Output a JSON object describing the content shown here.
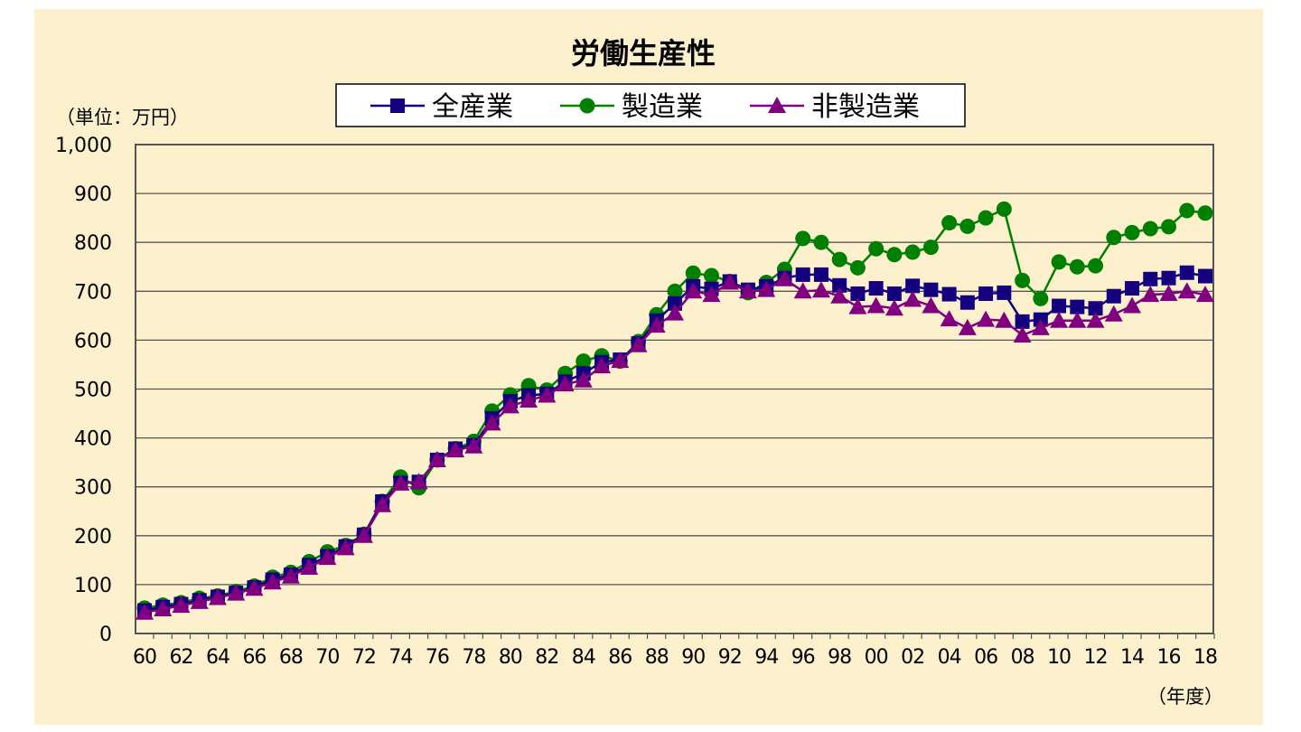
{
  "chart_data": {
    "type": "line",
    "title": "労働生産性",
    "unit_label": "（単位：万円）",
    "xlabel": "（年度）",
    "ylim": [
      0,
      1000
    ],
    "yticks": [
      "0",
      "100",
      "200",
      "300",
      "400",
      "500",
      "600",
      "700",
      "800",
      "900",
      "1,000"
    ],
    "ytick_values": [
      0,
      100,
      200,
      300,
      400,
      500,
      600,
      700,
      800,
      900,
      1000
    ],
    "xtick_labels": [
      "60",
      "62",
      "64",
      "66",
      "68",
      "70",
      "72",
      "74",
      "76",
      "78",
      "80",
      "82",
      "84",
      "86",
      "88",
      "90",
      "92",
      "94",
      "96",
      "98",
      "00",
      "02",
      "04",
      "06",
      "08",
      "10",
      "12",
      "14",
      "16",
      "18"
    ],
    "x": [
      1960,
      1961,
      1962,
      1963,
      1964,
      1965,
      1966,
      1967,
      1968,
      1969,
      1970,
      1971,
      1972,
      1973,
      1974,
      1975,
      1976,
      1977,
      1978,
      1979,
      1980,
      1981,
      1982,
      1983,
      1984,
      1985,
      1986,
      1987,
      1988,
      1989,
      1990,
      1991,
      1992,
      1993,
      1994,
      1995,
      1996,
      1997,
      1998,
      1999,
      2000,
      2001,
      2002,
      2003,
      2004,
      2005,
      2006,
      2007,
      2008,
      2009,
      2010,
      2011,
      2012,
      2013,
      2014,
      2015,
      2016,
      2017,
      2018
    ],
    "grid": true,
    "legend": "top",
    "series": [
      {
        "name": "全産業",
        "color": "#14007F",
        "marker": "square",
        "values": [
          47,
          54,
          60,
          68,
          75,
          83,
          94,
          110,
          120,
          140,
          158,
          178,
          202,
          270,
          308,
          310,
          355,
          378,
          385,
          440,
          475,
          487,
          490,
          515,
          532,
          555,
          560,
          593,
          640,
          675,
          710,
          705,
          720,
          703,
          710,
          727,
          734,
          734,
          712,
          695,
          706,
          695,
          711,
          703,
          694,
          677,
          695,
          697,
          638,
          642,
          670,
          668,
          665,
          690,
          706,
          725,
          727,
          738,
          731
        ]
      },
      {
        "name": "製造業",
        "color": "#008000",
        "marker": "circle",
        "values": [
          52,
          58,
          63,
          72,
          77,
          86,
          97,
          115,
          125,
          147,
          167,
          180,
          203,
          270,
          320,
          298,
          355,
          378,
          393,
          455,
          488,
          507,
          498,
          532,
          557,
          568,
          557,
          597,
          652,
          700,
          737,
          732,
          720,
          697,
          718,
          745,
          808,
          800,
          765,
          748,
          787,
          775,
          780,
          790,
          840,
          833,
          850,
          868,
          722,
          685,
          760,
          750,
          752,
          810,
          820,
          828,
          832,
          865,
          860
        ]
      },
      {
        "name": "非製造業",
        "color": "#800080",
        "marker": "triangle",
        "values": [
          43,
          50,
          57,
          65,
          73,
          82,
          92,
          105,
          117,
          135,
          155,
          175,
          200,
          263,
          307,
          310,
          355,
          375,
          383,
          430,
          465,
          477,
          487,
          510,
          518,
          547,
          558,
          590,
          630,
          655,
          700,
          693,
          718,
          700,
          703,
          725,
          700,
          702,
          690,
          668,
          670,
          665,
          683,
          670,
          643,
          625,
          642,
          640,
          610,
          625,
          640,
          640,
          640,
          653,
          670,
          693,
          695,
          700,
          693
        ]
      }
    ]
  }
}
